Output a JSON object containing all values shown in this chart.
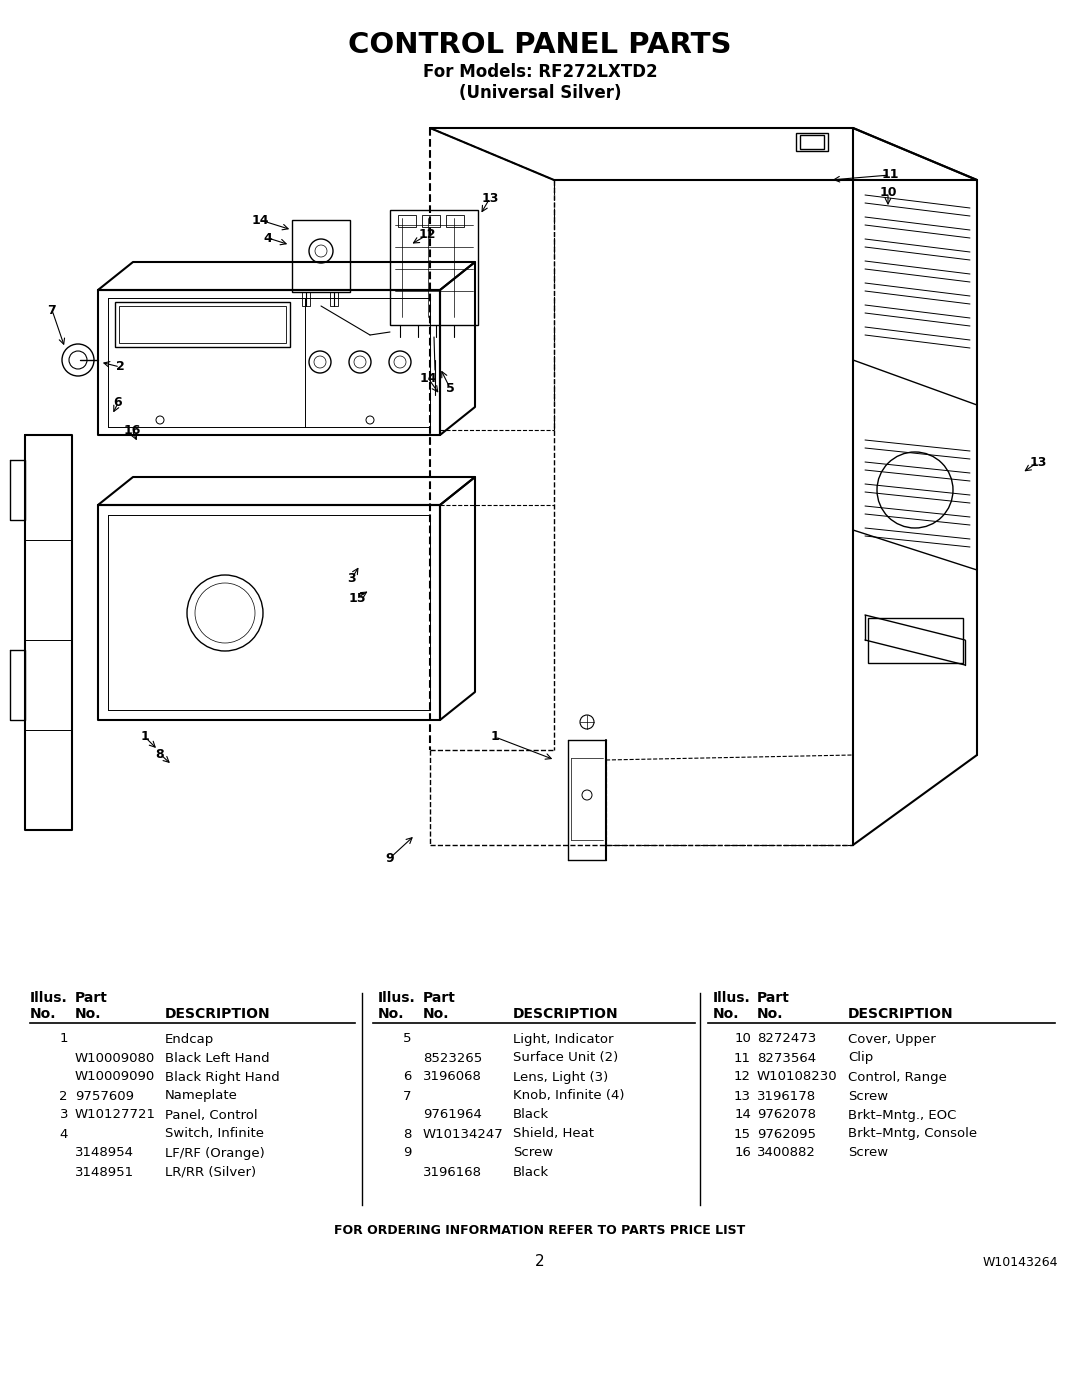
{
  "title": "CONTROL PANEL PARTS",
  "subtitle1": "For Models: RF272LXTD2",
  "subtitle2": "(Universal Silver)",
  "page_number": "2",
  "doc_number": "W10143264",
  "footer_text": "FOR ORDERING INFORMATION REFER TO PARTS PRICE LIST",
  "bg_color": "#ffffff",
  "text_color": "#000000",
  "table_col1_rows": [
    {
      "illus": "1",
      "part": "",
      "desc": "Endcap"
    },
    {
      "illus": "",
      "part": "W10009080",
      "desc": "Black Left Hand"
    },
    {
      "illus": "",
      "part": "W10009090",
      "desc": "Black Right Hand"
    },
    {
      "illus": "2",
      "part": "9757609",
      "desc": "Nameplate"
    },
    {
      "illus": "3",
      "part": "W10127721",
      "desc": "Panel, Control"
    },
    {
      "illus": "4",
      "part": "",
      "desc": "Switch, Infinite"
    },
    {
      "illus": "",
      "part": "3148954",
      "desc": "LF/RF (Orange)"
    },
    {
      "illus": "",
      "part": "3148951",
      "desc": "LR/RR (Silver)"
    }
  ],
  "table_col2_rows": [
    {
      "illus": "5",
      "part": "",
      "desc": "Light, Indicator"
    },
    {
      "illus": "",
      "part": "8523265",
      "desc": "Surface Unit (2)"
    },
    {
      "illus": "6",
      "part": "3196068",
      "desc": "Lens, Light (3)"
    },
    {
      "illus": "7",
      "part": "",
      "desc": "Knob, Infinite (4)"
    },
    {
      "illus": "",
      "part": "9761964",
      "desc": "Black"
    },
    {
      "illus": "8",
      "part": "W10134247",
      "desc": "Shield, Heat"
    },
    {
      "illus": "9",
      "part": "",
      "desc": "Screw"
    },
    {
      "illus": "",
      "part": "3196168",
      "desc": "Black"
    }
  ],
  "table_col3_rows": [
    {
      "illus": "10",
      "part": "8272473",
      "desc": "Cover, Upper"
    },
    {
      "illus": "11",
      "part": "8273564",
      "desc": "Clip"
    },
    {
      "illus": "12",
      "part": "W10108230",
      "desc": "Control, Range"
    },
    {
      "illus": "13",
      "part": "3196178",
      "desc": "Screw"
    },
    {
      "illus": "14",
      "part": "9762078",
      "desc": "Brkt–Mntg., EOC"
    },
    {
      "illus": "15",
      "part": "9762095",
      "desc": "Brkt–Mntg, Console"
    },
    {
      "illus": "16",
      "part": "3400882",
      "desc": "Screw"
    }
  ]
}
